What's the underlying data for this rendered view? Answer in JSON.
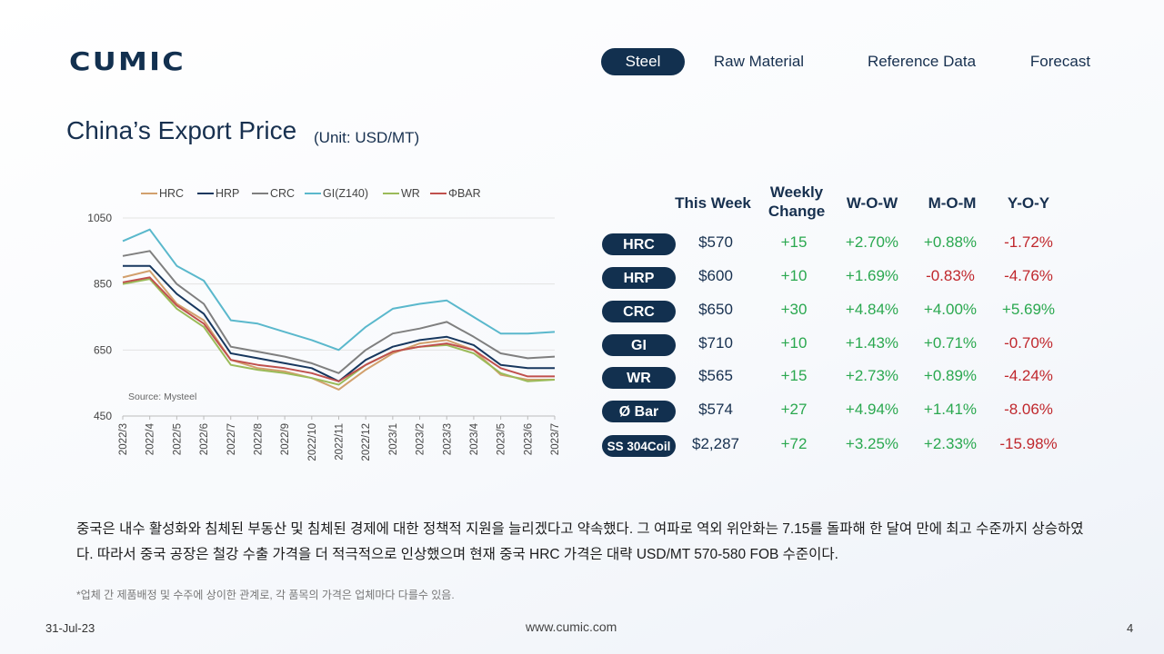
{
  "brand": {
    "logo_text": "CUMIC",
    "logo_color": "#12304f"
  },
  "nav": {
    "items": [
      "Steel",
      "Raw Material",
      "Reference Data",
      "Forecast"
    ],
    "active_index": 0
  },
  "page": {
    "title": "China’s Export Price",
    "unit": "(Unit: USD/MT)"
  },
  "chart_data": {
    "type": "line",
    "x": [
      "2022/3",
      "2022/4",
      "2022/5",
      "2022/6",
      "2022/7",
      "2022/8",
      "2022/9",
      "2022/10",
      "2022/11",
      "2022/12",
      "2023/1",
      "2023/2",
      "2023/3",
      "2023/4",
      "2023/5",
      "2023/6",
      "2023/7"
    ],
    "ylim": [
      450,
      1050
    ],
    "yticks": [
      450,
      650,
      850,
      1050
    ],
    "grid": true,
    "legend": "top",
    "source": "Source: Mysteel",
    "series": [
      {
        "name": "HRC",
        "color": "#d2a06d",
        "values": [
          870,
          890,
          790,
          740,
          620,
          595,
          585,
          565,
          530,
          590,
          640,
          670,
          680,
          650,
          575,
          560,
          560
        ]
      },
      {
        "name": "HRP",
        "color": "#17375e",
        "values": [
          905,
          905,
          820,
          760,
          640,
          625,
          610,
          595,
          555,
          620,
          660,
          680,
          690,
          665,
          605,
          595,
          595
        ]
      },
      {
        "name": "CRC",
        "color": "#7f7f7f",
        "values": [
          935,
          950,
          850,
          790,
          660,
          645,
          630,
          610,
          580,
          650,
          700,
          715,
          735,
          690,
          640,
          625,
          630
        ]
      },
      {
        "name": "GI(Z140)",
        "color": "#5ab8cc",
        "values": [
          980,
          1015,
          905,
          860,
          740,
          730,
          705,
          680,
          650,
          720,
          775,
          790,
          800,
          750,
          700,
          700,
          705
        ]
      },
      {
        "name": "WR",
        "color": "#9bbb59",
        "values": [
          850,
          865,
          775,
          720,
          605,
          590,
          580,
          565,
          545,
          605,
          645,
          660,
          665,
          640,
          580,
          555,
          560
        ]
      },
      {
        "name": "ΦBAR",
        "color": "#c0504d",
        "values": [
          855,
          870,
          785,
          730,
          620,
          605,
          595,
          580,
          555,
          605,
          645,
          660,
          670,
          650,
          595,
          570,
          570
        ]
      }
    ]
  },
  "table": {
    "headers": {
      "this_week": "This Week",
      "weekly_change_1": "Weekly",
      "weekly_change_2": "Change",
      "wow": "W-O-W",
      "mom": "M-O-M",
      "yoy": "Y-O-Y"
    },
    "rows": [
      {
        "product": "HRC",
        "price": "$570",
        "change": "+15",
        "wow": "+2.70%",
        "mom": "+0.88%",
        "yoy": "-1.72%"
      },
      {
        "product": "HRP",
        "price": "$600",
        "change": "+10",
        "wow": "+1.69%",
        "mom": "-0.83%",
        "yoy": "-4.76%"
      },
      {
        "product": "CRC",
        "price": "$650",
        "change": "+30",
        "wow": "+4.84%",
        "mom": "+4.00%",
        "yoy": "+5.69%"
      },
      {
        "product": "GI",
        "price": "$710",
        "change": "+10",
        "wow": "+1.43%",
        "mom": "+0.71%",
        "yoy": "-0.70%"
      },
      {
        "product": "WR",
        "price": "$565",
        "change": "+15",
        "wow": "+2.73%",
        "mom": "+0.89%",
        "yoy": "-4.24%"
      },
      {
        "product": "Ø Bar",
        "price": "$574",
        "change": "+27",
        "wow": "+4.94%",
        "mom": "+1.41%",
        "yoy": "-8.06%"
      },
      {
        "product": "SS 304Coil",
        "price": "$2,287",
        "change": "+72",
        "wow": "+3.25%",
        "mom": "+2.33%",
        "yoy": "-15.98%"
      }
    ]
  },
  "summary": "중국은 내수 활성화와 침체된 부동산 및 침체된 경제에 대한 정책적 지원을 늘리겠다고 약속했다. 그 여파로 역외 위안화는 7.15를 돌파해 한 달여 만에 최고 수준까지 상승하였다. 따라서 중국 공장은 철강 수출 가격을 더 적극적으로 인상했으며 현재 중국 HRC 가격은 대략 USD/MT 570-580 FOB 수준이다.",
  "note": "*업체 간 제품배정 및 수주에 상이한 관계로, 각 품목의 가격은 업체마다 다를수 있음.",
  "footer": {
    "date": "31-Jul-23",
    "url": "www.cumic.com",
    "page": "4"
  }
}
